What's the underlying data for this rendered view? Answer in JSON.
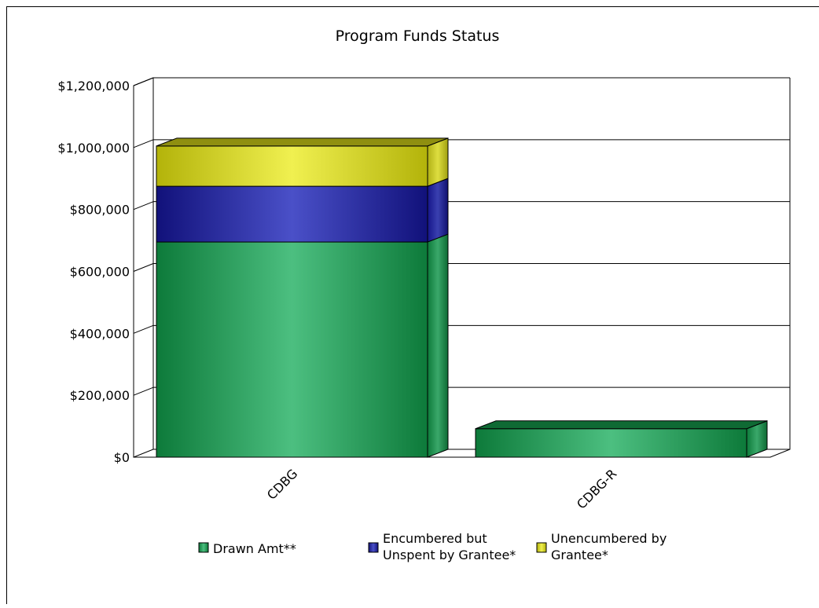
{
  "chart_data": {
    "type": "bar",
    "stacked": true,
    "style": "3d",
    "title": "Program Funds Status",
    "xlabel": "",
    "ylabel": "",
    "categories": [
      "CDBG",
      "CDBG-R"
    ],
    "series": [
      {
        "name": "Drawn Amt**",
        "values": [
          695000,
          92000
        ]
      },
      {
        "name": "Encumbered but Unspent by Grantee*",
        "values": [
          180000,
          0
        ]
      },
      {
        "name": "Unencumbered by Grantee*",
        "values": [
          130000,
          0
        ]
      }
    ],
    "ylim": [
      0,
      1200000
    ],
    "yticks": [
      0,
      200000,
      400000,
      600000,
      800000,
      1000000,
      1200000
    ],
    "ytick_labels": [
      "$0",
      "$200,000",
      "$400,000",
      "$600,000",
      "$800,000",
      "$1,000,000",
      "$1,200,000"
    ],
    "grid": true,
    "legend": "bottom"
  },
  "legend": {
    "items": [
      {
        "lines": [
          "Drawn Amt**"
        ],
        "color": "#1e9e55"
      },
      {
        "lines": [
          "Encumbered but",
          "Unspent by Grantee*"
        ],
        "color": "#2a2fa0"
      },
      {
        "lines": [
          "Unencumbered by",
          "Grantee*"
        ],
        "color": "#e6e632"
      }
    ]
  },
  "colors": {
    "drawn": "#1e9e55",
    "encumbered": "#2a2fa0",
    "unencumbered": "#e6e632"
  }
}
